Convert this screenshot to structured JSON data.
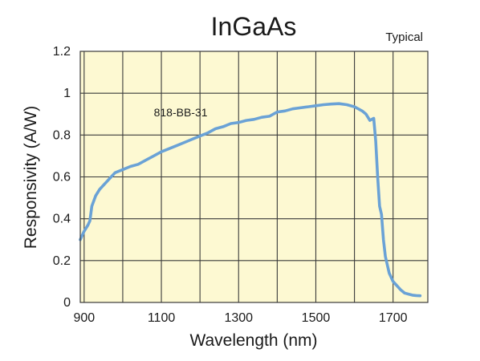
{
  "chart_data": {
    "type": "line",
    "title": "InGaAs",
    "subtitle": "Typical",
    "xlabel": "Wavelength (nm)",
    "ylabel": "Responsivity (A/W)",
    "xlim": [
      890,
      1790
    ],
    "ylim": [
      0,
      1.2
    ],
    "x_ticks": [
      900,
      1100,
      1300,
      1500,
      1700
    ],
    "x_tick_labels": [
      "900",
      "1100",
      "1300",
      "1500",
      "1700"
    ],
    "y_ticks": [
      0,
      0.2,
      0.4,
      0.6,
      0.8,
      1.0,
      1.2
    ],
    "y_tick_labels": [
      "0",
      "0.2",
      "0.4",
      "0.6",
      "0.8",
      "1",
      "1.2"
    ],
    "grid": true,
    "plot_background": "#fdf9d2",
    "grid_color": "#3a3a3a",
    "line_color": "#6aa2d6",
    "annotations": [
      {
        "text": "818-BB-31",
        "x": 1150,
        "y": 0.89
      }
    ],
    "series": [
      {
        "x": [
          890,
          900,
          910,
          915,
          920,
          930,
          940,
          950,
          960,
          970,
          980,
          1000,
          1020,
          1040,
          1060,
          1080,
          1100,
          1120,
          1140,
          1160,
          1180,
          1200,
          1220,
          1240,
          1260,
          1280,
          1300,
          1320,
          1340,
          1360,
          1380,
          1400,
          1420,
          1440,
          1460,
          1480,
          1500,
          1520,
          1540,
          1560,
          1580,
          1600,
          1620,
          1630,
          1640,
          1650,
          1655,
          1660,
          1665,
          1670,
          1675,
          1680,
          1685,
          1690,
          1700,
          1710,
          1720,
          1730,
          1740,
          1750,
          1760,
          1770
        ],
        "values": [
          0.3,
          0.34,
          0.37,
          0.39,
          0.46,
          0.51,
          0.54,
          0.56,
          0.58,
          0.6,
          0.62,
          0.635,
          0.65,
          0.66,
          0.68,
          0.7,
          0.72,
          0.735,
          0.75,
          0.765,
          0.78,
          0.795,
          0.81,
          0.83,
          0.84,
          0.855,
          0.86,
          0.87,
          0.875,
          0.885,
          0.89,
          0.91,
          0.915,
          0.925,
          0.93,
          0.935,
          0.94,
          0.945,
          0.948,
          0.95,
          0.945,
          0.935,
          0.915,
          0.9,
          0.87,
          0.88,
          0.77,
          0.6,
          0.46,
          0.42,
          0.3,
          0.22,
          0.18,
          0.14,
          0.1,
          0.08,
          0.06,
          0.045,
          0.04,
          0.035,
          0.033,
          0.032
        ]
      }
    ]
  }
}
